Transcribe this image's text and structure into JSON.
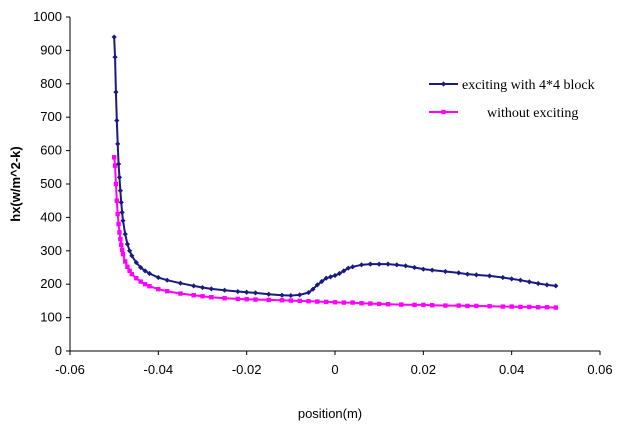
{
  "chart_data": {
    "type": "line",
    "title": "",
    "xlabel": "position(m)",
    "ylabel": "hx(w/m^2-k)",
    "xlim": [
      -0.06,
      0.06
    ],
    "ylim": [
      0,
      1000
    ],
    "x_ticks": [
      -0.06,
      -0.04,
      -0.02,
      0,
      0.02,
      0.04,
      0.06
    ],
    "x_tick_labels": [
      "-0.06",
      "-0.04",
      "-0.02",
      "0",
      "0.02",
      "0.04",
      "0.06"
    ],
    "y_ticks": [
      0,
      100,
      200,
      300,
      400,
      500,
      600,
      700,
      800,
      900,
      1000
    ],
    "y_tick_labels": [
      "0",
      "100",
      "200",
      "300",
      "400",
      "500",
      "600",
      "700",
      "800",
      "900",
      "1000"
    ],
    "grid": false,
    "legend_position": "right",
    "series": [
      {
        "name": "exciting with 4*4 block",
        "color": "#1a1a80",
        "marker": "diamond",
        "x": [
          -0.05,
          -0.0498,
          -0.0496,
          -0.0494,
          -0.0492,
          -0.049,
          -0.0488,
          -0.0486,
          -0.0484,
          -0.0482,
          -0.048,
          -0.0475,
          -0.047,
          -0.0465,
          -0.046,
          -0.045,
          -0.044,
          -0.043,
          -0.042,
          -0.04,
          -0.038,
          -0.035,
          -0.032,
          -0.03,
          -0.028,
          -0.025,
          -0.022,
          -0.02,
          -0.018,
          -0.015,
          -0.012,
          -0.01,
          -0.008,
          -0.006,
          -0.005,
          -0.004,
          -0.003,
          -0.002,
          -0.001,
          0,
          0.001,
          0.002,
          0.003,
          0.004,
          0.006,
          0.008,
          0.01,
          0.012,
          0.014,
          0.016,
          0.018,
          0.02,
          0.022,
          0.025,
          0.028,
          0.03,
          0.032,
          0.035,
          0.038,
          0.04,
          0.042,
          0.044,
          0.046,
          0.048,
          0.05
        ],
        "y": [
          940,
          880,
          775,
          690,
          620,
          560,
          520,
          480,
          445,
          415,
          390,
          350,
          320,
          300,
          285,
          265,
          250,
          240,
          232,
          220,
          212,
          203,
          195,
          190,
          186,
          182,
          178,
          176,
          174,
          170,
          167,
          166,
          168,
          175,
          185,
          198,
          208,
          218,
          222,
          226,
          232,
          240,
          248,
          252,
          258,
          260,
          260,
          260,
          258,
          255,
          250,
          245,
          242,
          238,
          234,
          230,
          228,
          225,
          220,
          216,
          212,
          207,
          202,
          198,
          195
        ]
      },
      {
        "name": "without exciting",
        "color": "#ff00ff",
        "marker": "square",
        "x": [
          -0.05,
          -0.0498,
          -0.0496,
          -0.0494,
          -0.0492,
          -0.049,
          -0.0488,
          -0.0486,
          -0.0484,
          -0.0482,
          -0.048,
          -0.0475,
          -0.047,
          -0.0465,
          -0.046,
          -0.045,
          -0.044,
          -0.043,
          -0.042,
          -0.04,
          -0.038,
          -0.035,
          -0.032,
          -0.03,
          -0.028,
          -0.025,
          -0.022,
          -0.02,
          -0.018,
          -0.015,
          -0.012,
          -0.01,
          -0.008,
          -0.006,
          -0.004,
          -0.002,
          0,
          0.002,
          0.004,
          0.006,
          0.008,
          0.01,
          0.012,
          0.015,
          0.018,
          0.02,
          0.022,
          0.025,
          0.028,
          0.03,
          0.032,
          0.035,
          0.038,
          0.04,
          0.042,
          0.044,
          0.046,
          0.048,
          0.05
        ],
        "y": [
          580,
          555,
          500,
          450,
          410,
          380,
          355,
          335,
          318,
          303,
          290,
          268,
          252,
          240,
          230,
          218,
          208,
          200,
          194,
          185,
          179,
          172,
          167,
          164,
          161,
          158,
          156,
          155,
          154,
          153,
          152,
          151,
          150,
          149,
          148,
          147,
          146,
          145,
          145,
          143,
          142,
          141,
          140,
          139,
          138,
          138,
          137,
          136,
          136,
          135,
          135,
          134,
          133,
          133,
          132,
          132,
          131,
          131,
          130
        ]
      }
    ]
  }
}
